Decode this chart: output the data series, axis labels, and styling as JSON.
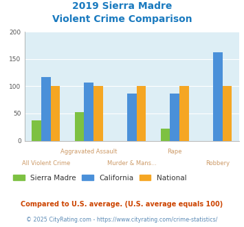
{
  "title_line1": "2019 Sierra Madre",
  "title_line2": "Violent Crime Comparison",
  "title_color": "#1a7abf",
  "categories": [
    "All Violent Crime",
    "Aggravated Assault",
    "Murder & Mans...",
    "Rape",
    "Robbery"
  ],
  "x_labels_top": [
    "",
    "Aggravated Assault",
    "",
    "Rape",
    ""
  ],
  "x_labels_bottom": [
    "All Violent Crime",
    "",
    "Murder & Mans...",
    "",
    "Robbery"
  ],
  "sierra_madre": [
    37,
    53,
    0,
    22,
    0
  ],
  "california": [
    117,
    107,
    86,
    87,
    162
  ],
  "national": [
    100,
    100,
    100,
    100,
    100
  ],
  "sierra_madre_color": "#7dc142",
  "california_color": "#4a90d9",
  "national_color": "#f5a623",
  "ylim": [
    0,
    200
  ],
  "yticks": [
    0,
    50,
    100,
    150,
    200
  ],
  "bar_width": 0.22,
  "bg_color": "#ddeef5",
  "legend_labels": [
    "Sierra Madre",
    "California",
    "National"
  ],
  "footnote1": "Compared to U.S. average. (U.S. average equals 100)",
  "footnote2": "© 2025 CityRating.com - https://www.cityrating.com/crime-statistics/",
  "footnote1_color": "#cc4400",
  "footnote2_color": "#5b8ab5"
}
